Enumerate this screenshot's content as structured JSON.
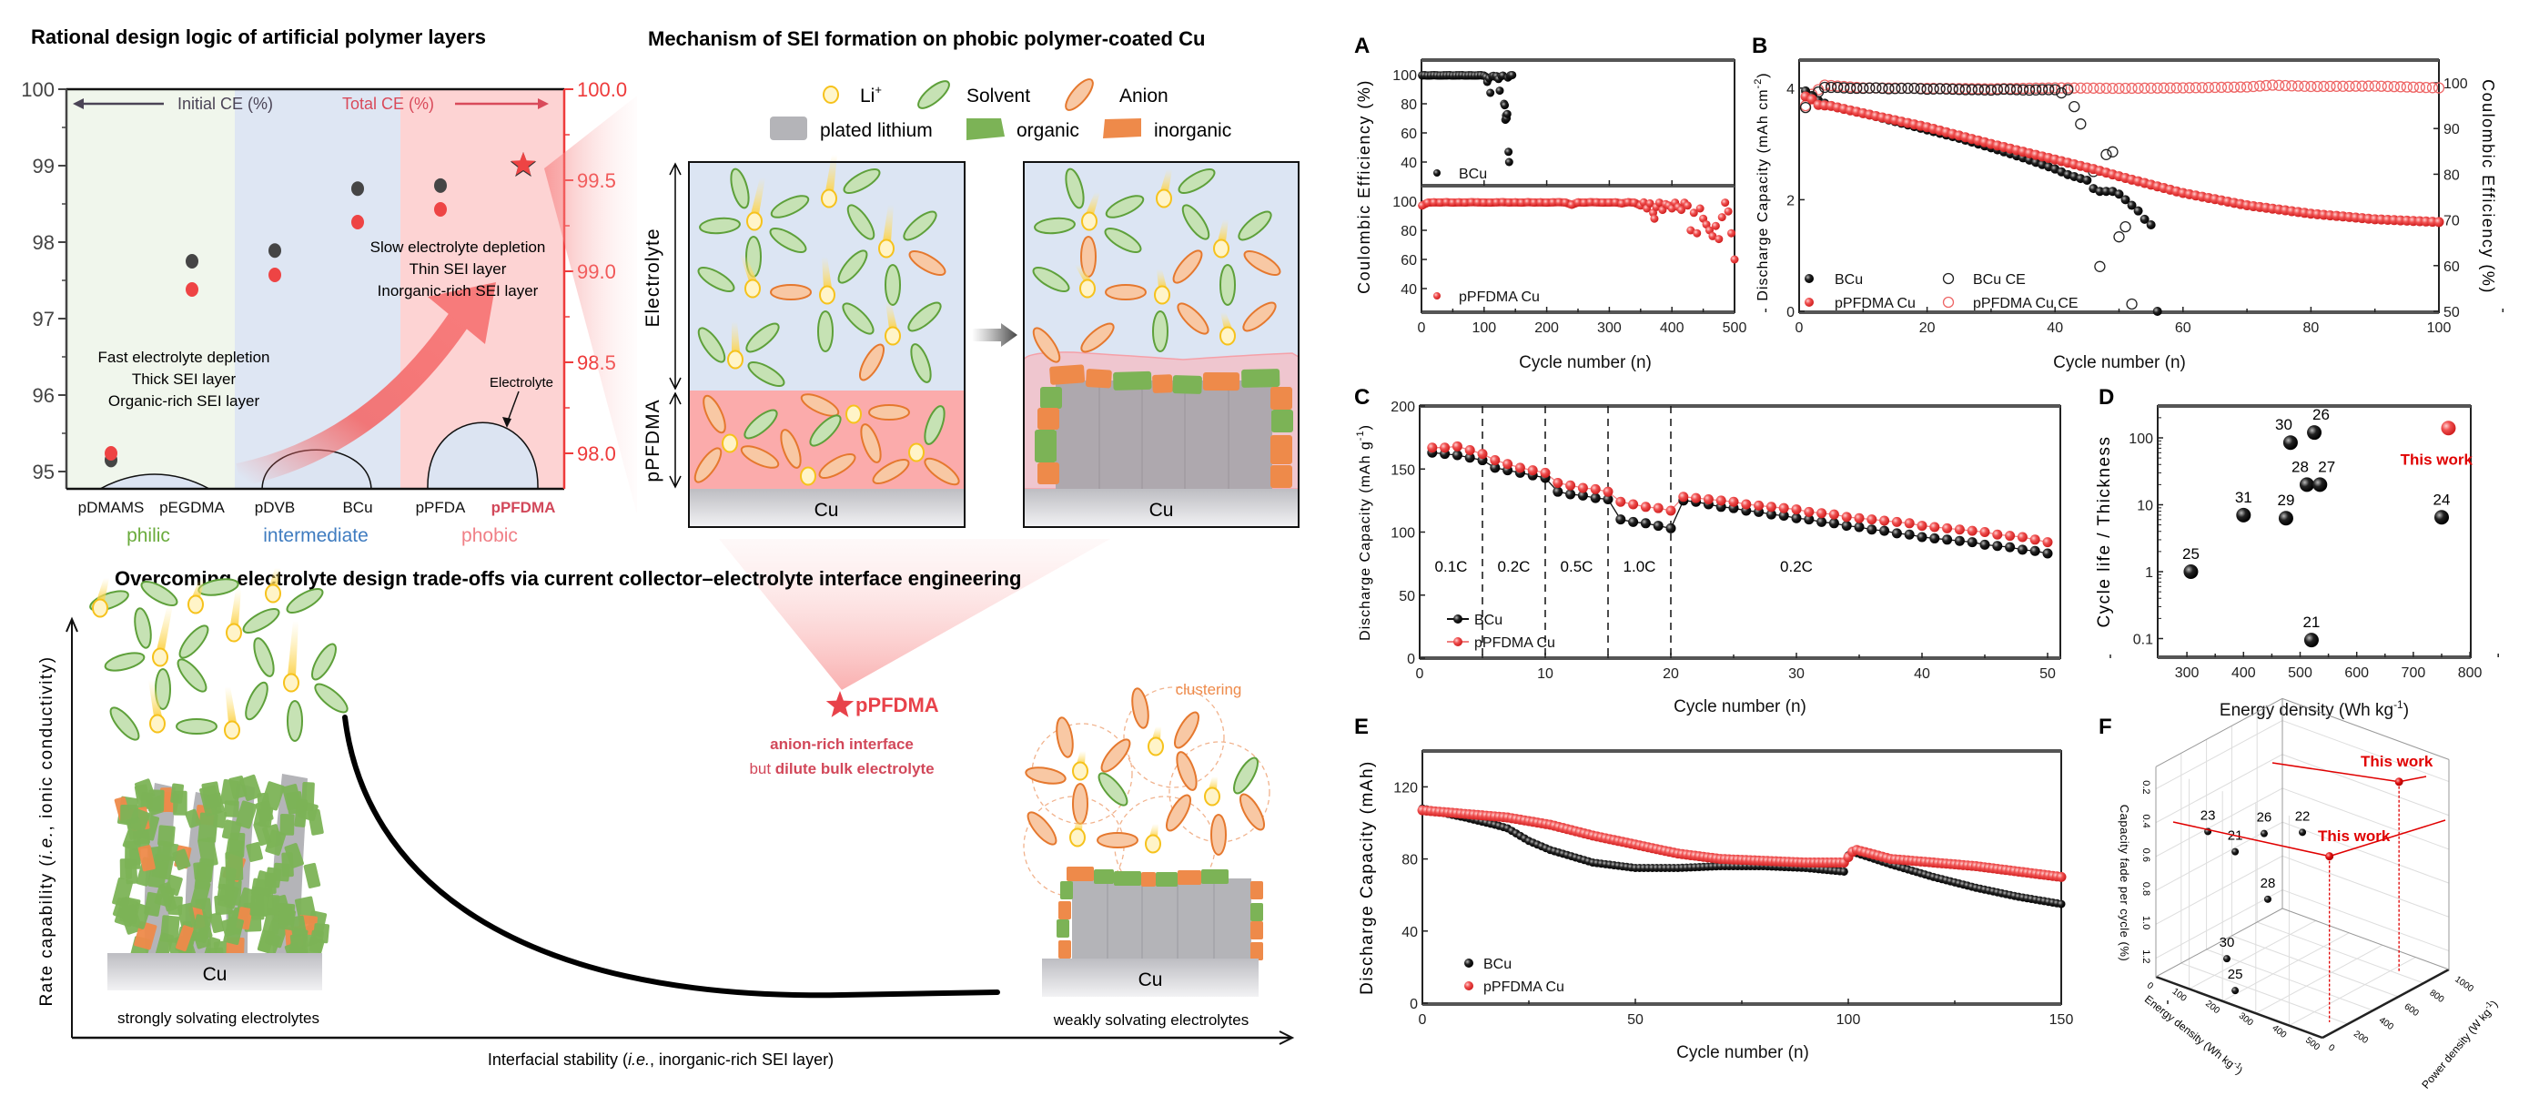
{
  "colors": {
    "accent_red": "#e8424a",
    "philic": "#6aab3c",
    "intermediate": "#3f7cc0",
    "phobic": "#f07f86",
    "organic": "#7cb356",
    "inorganic": "#ee8a4a",
    "plated_lithium": "#b4b4b8",
    "li_ion": "#f6c21c"
  },
  "design_panel": {
    "title": "Rational design logic of artificial polymer layers",
    "left_axis_label": "Initial CE (%)",
    "right_axis_label": "Total CE (%)",
    "left_ticks": [
      "100",
      "99",
      "98",
      "97",
      "96",
      "95"
    ],
    "right_ticks": [
      "100.0",
      "99.5",
      "99.0",
      "98.5",
      "98.0"
    ],
    "categories": [
      "pDMAMS",
      "pEGDMA",
      "pDVB",
      "BCu",
      "pPFDA",
      "pPFDMA"
    ],
    "groups": [
      "philic",
      "intermediate",
      "phobic"
    ],
    "notes_low": [
      "Fast electrolyte depletion",
      "Thick SEI layer",
      "Organic-rich SEI layer"
    ],
    "notes_high": [
      "Slow electrolyte depletion",
      "Thin SEI layer",
      "Inorganic-rich SEI layer"
    ],
    "droplet_label": "Electrolyte"
  },
  "mechanism_panel": {
    "title": "Mechanism of SEI formation on phobic polymer-coated Cu",
    "legend": {
      "li": "Li",
      "li_sup": "+",
      "solvent": "Solvent",
      "anion": "Anion",
      "plated": "plated lithium",
      "organic": "organic",
      "inorganic": "inorganic"
    },
    "side_electrolyte": "Electrolyte",
    "side_polymer": "pPFDMA",
    "substrate": "Cu"
  },
  "tradeoff_panel": {
    "title": "Overcoming electrolyte design trade-offs via current collector–electrolyte interface engineering",
    "y_label": [
      "Rate capability (",
      "i.e.",
      ", ionic conductivity)"
    ],
    "x_label": [
      "Interfacial stability (",
      "i.e.",
      ", inorganic-rich SEI layer)"
    ],
    "left_caption": "strongly solvating electrolytes",
    "right_caption": "weakly solvating electrolytes",
    "substrate": "Cu",
    "marker_label": "pPFDMA",
    "note_line1": "anion-rich interface",
    "note_line2_regular": "but ",
    "note_line2_bold": "dilute bulk electrolyte",
    "clustering": "clustering"
  },
  "chart_data": [
    {
      "panel": "design",
      "type": "scatter",
      "categories": [
        "pDMAMS",
        "pEGDMA",
        "pDVB",
        "BCu",
        "pPFDA",
        "pPFDMA"
      ],
      "series": [
        {
          "name": "Initial CE (%)",
          "axis": "left",
          "values": [
            95.15,
            97.75,
            97.89,
            98.7,
            98.74,
            99.0
          ]
        },
        {
          "name": "Total CE (%)",
          "axis": "right",
          "values": [
            98.0,
            98.9,
            98.98,
            99.27,
            99.34,
            99.58
          ]
        }
      ],
      "ylim_left": [
        94.75,
        100
      ],
      "ylim_right": [
        97.8,
        100
      ],
      "grid": false
    },
    {
      "panel": "A",
      "type": "scatter",
      "xlabel": "Cycle number (n)",
      "ylabel": "Coulombic Efficiency (%)",
      "xticks": [
        "0",
        "100",
        "200",
        "300",
        "400",
        "500"
      ],
      "yticks": [
        "100",
        "80",
        "60",
        "40"
      ],
      "xlim": [
        0,
        500
      ],
      "ylim": [
        24,
        110
      ],
      "series": [
        {
          "name": "BCu",
          "x": [
            1,
            5,
            10,
            15,
            20,
            25,
            30,
            35,
            40,
            45,
            50,
            55,
            60,
            65,
            70,
            75,
            80,
            85,
            90,
            95,
            100,
            103,
            105,
            108,
            110,
            113,
            115,
            118,
            120,
            123,
            125,
            128,
            130,
            132,
            133,
            134,
            135,
            136,
            137,
            138,
            139,
            140,
            141,
            142,
            143,
            145
          ],
          "y": [
            99.5,
            99.6,
            99.4,
            99.5,
            99.6,
            99.5,
            99.4,
            99.5,
            99.5,
            99.6,
            99.4,
            99.5,
            99.5,
            99.6,
            99.4,
            99.5,
            99.5,
            99.4,
            99.5,
            99.6,
            99.3,
            98.5,
            95,
            97.5,
            87.5,
            99,
            99.2,
            98.5,
            99,
            97,
            89,
            99,
            99.4,
            80,
            79,
            69,
            72,
            70,
            73,
            98,
            47,
            40,
            99,
            99.5,
            99.6,
            99.7
          ]
        },
        {
          "name": "pPFDMA Cu",
          "x": [
            1,
            10,
            20,
            30,
            40,
            50,
            60,
            70,
            80,
            90,
            100,
            110,
            120,
            130,
            140,
            150,
            160,
            170,
            180,
            190,
            200,
            210,
            220,
            230,
            240,
            250,
            260,
            270,
            280,
            290,
            300,
            310,
            320,
            330,
            340,
            350,
            355,
            360,
            365,
            370,
            372,
            375,
            380,
            385,
            390,
            395,
            400,
            405,
            410,
            415,
            420,
            425,
            430,
            435,
            440,
            445,
            450,
            455,
            460,
            465,
            470,
            475,
            480,
            485,
            490,
            495,
            500
          ],
          "y": [
            97,
            99,
            99.2,
            99.1,
            99.3,
            99,
            99.2,
            99.1,
            99.3,
            99.2,
            99.1,
            99,
            99.2,
            99.3,
            99.1,
            99.2,
            99,
            99.3,
            99.1,
            99.2,
            99,
            99.2,
            99.3,
            99.1,
            97.5,
            99.2,
            99,
            99.3,
            99.2,
            99,
            99.1,
            99.2,
            98.5,
            99.3,
            99,
            97,
            99.2,
            95,
            98.5,
            92,
            88,
            96,
            99,
            94,
            98,
            97,
            95,
            99,
            96,
            94,
            99,
            97,
            80,
            92,
            78,
            95,
            88,
            84,
            80,
            76,
            83,
            74,
            89,
            99,
            93,
            78,
            60
          ]
        }
      ]
    },
    {
      "panel": "B",
      "type": "scatter",
      "xlabel": "Cycle number (n)",
      "ylabel": [
        "Discharge Capacity (mAh cm",
        "-2",
        ")"
      ],
      "ylabel_right": "Coulombic Efficiency (%)",
      "xticks": [
        "0",
        "20",
        "40",
        "60",
        "80",
        "100"
      ],
      "yticks": [
        "0",
        "2",
        "4"
      ],
      "yticks_right": [
        "50",
        "60",
        "70",
        "80",
        "90",
        "100"
      ],
      "xlim": [
        0,
        100
      ],
      "ylim": [
        0,
        4.5
      ],
      "ylim_right": [
        50,
        105
      ],
      "series": [
        {
          "name": "BCu",
          "axis": "left",
          "x": [
            1,
            2,
            3,
            5,
            10,
            15,
            20,
            25,
            30,
            35,
            40,
            42,
            44,
            45,
            46,
            47,
            48,
            49,
            50,
            51,
            52,
            53,
            54,
            55,
            56
          ],
          "y": [
            3.95,
            3.85,
            3.78,
            3.68,
            3.55,
            3.4,
            3.25,
            3.1,
            2.93,
            2.75,
            2.55,
            2.45,
            2.38,
            2.35,
            2.2,
            2.15,
            2.15,
            2.15,
            2.1,
            2.0,
            1.9,
            1.8,
            1.65,
            1.55,
            0
          ]
        },
        {
          "name": "pPFDMA Cu",
          "axis": "left",
          "x": [
            1,
            2,
            3,
            5,
            10,
            20,
            30,
            40,
            46,
            50,
            60,
            70,
            80,
            90,
            100
          ],
          "y": [
            3.85,
            3.8,
            3.7,
            3.68,
            3.55,
            3.3,
            3.0,
            2.72,
            2.55,
            2.42,
            2.12,
            1.9,
            1.75,
            1.65,
            1.6
          ]
        },
        {
          "name": "BCu CE",
          "axis": "right",
          "x": [
            1,
            2,
            3,
            4,
            6,
            8,
            10,
            12,
            14,
            16,
            18,
            20,
            22,
            24,
            26,
            28,
            30,
            32,
            34,
            36,
            38,
            40,
            41,
            42,
            43,
            44,
            46,
            47,
            48,
            49,
            50,
            51,
            52
          ],
          "y": [
            94.6,
            97,
            98,
            99,
            99,
            98.8,
            98.8,
            98.9,
            98.7,
            98.8,
            98.8,
            98.6,
            98.7,
            98.6,
            98.5,
            98.5,
            98.4,
            98.6,
            98.5,
            98.4,
            98.5,
            98.5,
            97.8,
            98.5,
            94.8,
            91,
            80.6,
            59.8,
            84.3,
            84.9,
            66.3,
            68.5,
            51.6
          ]
        },
        {
          "name": "pPFDMA Cu CE",
          "axis": "right",
          "x": [
            1,
            2,
            4,
            10,
            20,
            30,
            40,
            50,
            60,
            70,
            74,
            80,
            90,
            100
          ],
          "y": [
            95,
            97.5,
            99.5,
            98.9,
            98.8,
            98.7,
            98.9,
            98.8,
            98.9,
            99.1,
            99.5,
            99.2,
            99.3,
            98.9
          ]
        }
      ]
    },
    {
      "panel": "C",
      "type": "line",
      "xlabel": "Cycle number (n)",
      "ylabel": [
        "Discharge Capacity (mAh g",
        "-1",
        ")"
      ],
      "xticks": [
        "0",
        "10",
        "20",
        "30",
        "40",
        "50"
      ],
      "yticks": [
        "0",
        "50",
        "100",
        "150",
        "200"
      ],
      "xlim": [
        0,
        51
      ],
      "ylim": [
        0,
        200
      ],
      "rate_labels": [
        "0.1C",
        "0.2C",
        "0.5C",
        "1.0C",
        "0.2C"
      ],
      "rate_boundaries": [
        5,
        10,
        15,
        20
      ],
      "series": [
        {
          "name": "BCu",
          "values": [
            163,
            162,
            161,
            159,
            157,
            151,
            149,
            147,
            145,
            143,
            132,
            130,
            129,
            127,
            126,
            110,
            108,
            107,
            105,
            103,
            125,
            124,
            122,
            120,
            119,
            117,
            116,
            114,
            113,
            111,
            110,
            108,
            107,
            105,
            104,
            102,
            101,
            99,
            98,
            96,
            95,
            94,
            93,
            92,
            90,
            89,
            88,
            86,
            85,
            83
          ]
        },
        {
          "name": "pPFDMA Cu",
          "values": [
            167,
            167,
            168,
            165,
            162,
            157,
            154,
            151,
            149,
            147,
            139,
            137,
            135,
            134,
            132,
            124,
            122,
            120,
            119,
            117,
            128,
            127,
            126,
            125,
            124,
            122,
            121,
            120,
            119,
            118,
            116,
            115,
            114,
            112,
            111,
            110,
            109,
            108,
            107,
            105,
            104,
            103,
            102,
            101,
            100,
            98,
            97,
            96,
            94,
            92
          ]
        }
      ]
    },
    {
      "panel": "D",
      "type": "scatter",
      "yscale": "log",
      "xlabel": [
        "Energy density (Wh kg",
        "-1",
        ")"
      ],
      "ylabel": "Cycle life / Thickness",
      "xticks": [
        "300",
        "400",
        "500",
        "600",
        "700",
        "800"
      ],
      "yticks": [
        "0.1",
        "1",
        "10",
        "100"
      ],
      "xlim": [
        250,
        800
      ],
      "ylim": [
        0.05,
        300
      ],
      "points": [
        {
          "label": "25",
          "x": 307,
          "y": 1.0
        },
        {
          "label": "31",
          "x": 400,
          "y": 7
        },
        {
          "label": "29",
          "x": 475,
          "y": 6.3
        },
        {
          "label": "30",
          "x": 483,
          "y": 85
        },
        {
          "label": "26",
          "x": 525,
          "y": 120
        },
        {
          "label": "28",
          "x": 512,
          "y": 20
        },
        {
          "label": "27",
          "x": 535,
          "y": 20
        },
        {
          "label": "21",
          "x": 520,
          "y": 0.095
        },
        {
          "label": "24",
          "x": 750,
          "y": 6.5
        },
        {
          "label": "This work",
          "x": 762,
          "y": 140,
          "highlight": true
        }
      ]
    },
    {
      "panel": "E",
      "type": "scatter",
      "xlabel": "Cycle number (n)",
      "ylabel": "Discharge Capacity (mAh)",
      "xticks": [
        "0",
        "50",
        "100",
        "150"
      ],
      "yticks": [
        "0",
        "40",
        "80",
        "120"
      ],
      "xlim": [
        0,
        150
      ],
      "ylim": [
        0,
        140
      ],
      "series": [
        {
          "name": "BCu",
          "x": [
            0,
            10,
            17,
            20,
            25,
            30,
            40,
            50,
            60,
            70,
            80,
            90,
            99,
            100,
            101,
            110,
            120,
            130,
            140,
            150
          ],
          "y": [
            108,
            103,
            99,
            97,
            90,
            85,
            78,
            75,
            75,
            76,
            76,
            75,
            73,
            82,
            84,
            77,
            70,
            64,
            59,
            55
          ]
        },
        {
          "name": "pPFDMA Cu",
          "x": [
            0,
            10,
            20,
            30,
            40,
            50,
            60,
            70,
            80,
            90,
            99,
            101,
            102,
            110,
            120,
            130,
            140,
            150
          ],
          "y": [
            107,
            105,
            103,
            99,
            93,
            88,
            83,
            80,
            79,
            78,
            78,
            84,
            85,
            80,
            78,
            76,
            73,
            70
          ]
        }
      ]
    },
    {
      "panel": "F",
      "type": "scatter3d",
      "xlabel": [
        "Energy density (Wh kg",
        "-1",
        ")"
      ],
      "ylabel": [
        "Power density (W kg",
        "-1",
        ")"
      ],
      "zlabel": "Capacity fade per cycle (%)",
      "xticks": [
        "0",
        "100",
        "200",
        "300",
        "400",
        "500"
      ],
      "yticks": [
        "0",
        "200",
        "400",
        "600",
        "800",
        "1000"
      ],
      "zticks": [
        "0.2",
        "0.4",
        "0.6",
        "0.8",
        "1.0",
        "1.2"
      ],
      "xlim": [
        0,
        500
      ],
      "ylim": [
        0,
        1000
      ],
      "points": [
        {
          "label": "23",
          "energy": 156,
          "power": 0,
          "fade": 0.34
        },
        {
          "label": "21",
          "energy": 238,
          "power": 0,
          "fade": 0.4
        },
        {
          "label": "26",
          "energy": 325,
          "power": 0,
          "fade": 0.23
        },
        {
          "label": "22",
          "energy": 440,
          "power": 0,
          "fade": 0.14
        },
        {
          "label": "28",
          "energy": 336,
          "power": 0,
          "fade": 0.61
        },
        {
          "label": "30",
          "energy": 213,
          "power": 0,
          "fade": 1.05
        },
        {
          "label": "25",
          "energy": 238,
          "power": 0,
          "fade": 1.22
        },
        {
          "label": "This work",
          "energy": 417,
          "power": 824,
          "fade": 0.19,
          "highlight": true
        },
        {
          "label": "This work",
          "energy": 461,
          "power": 158,
          "fade": 0.33,
          "highlight": true
        }
      ]
    }
  ],
  "panel_letters": [
    "A",
    "B",
    "C",
    "D",
    "E",
    "F"
  ]
}
